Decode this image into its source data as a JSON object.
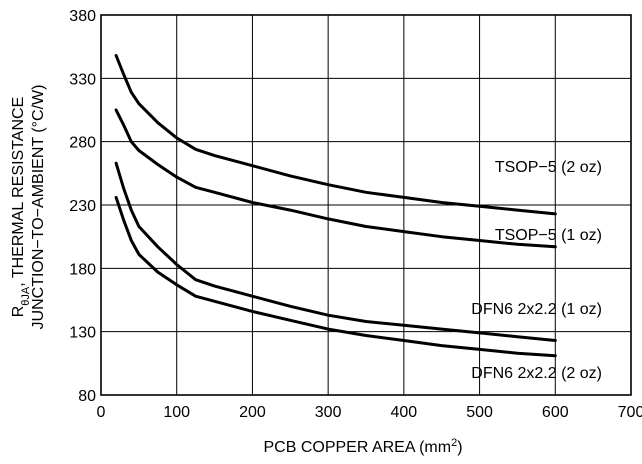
{
  "chart_data": {
    "type": "line",
    "title": "",
    "xlabel_main": "PCB COPPER AREA (mm",
    "xlabel_sup": "2",
    "xlabel_end": ")",
    "ylabel_line1_prefix": "R",
    "ylabel_line1_sub": "θJA",
    "ylabel_line1_rest": ", THERMAL RESISTANCE",
    "ylabel_line2": "JUNCTION−TO−AMBIENT (°C/W)",
    "xlim": [
      0,
      700
    ],
    "ylim": [
      80,
      380
    ],
    "xticks": [
      0,
      100,
      200,
      300,
      400,
      500,
      600,
      700
    ],
    "yticks": [
      80,
      130,
      180,
      230,
      280,
      330,
      380
    ],
    "grid": true,
    "legend": "none",
    "series": [
      {
        "name": "TSOP−5 (1 oz)",
        "x": [
          20,
          30,
          40,
          50,
          75,
          100,
          125,
          150,
          200,
          250,
          300,
          350,
          400,
          450,
          500,
          550,
          600
        ],
        "y": [
          348,
          333,
          319,
          310,
          295,
          283,
          274,
          269,
          261,
          253,
          246,
          240,
          236,
          232,
          229,
          226,
          223
        ]
      },
      {
        "name": "TSOP−5 (2 oz)",
        "x": [
          20,
          30,
          40,
          50,
          75,
          100,
          125,
          150,
          200,
          250,
          300,
          350,
          400,
          450,
          500,
          550,
          600
        ],
        "y": [
          305,
          293,
          280,
          273,
          262,
          252,
          244,
          240,
          232,
          226,
          219,
          213,
          209,
          205,
          202,
          199,
          197
        ]
      },
      {
        "name": "DFN6 2x2.2 (1 oz)",
        "x": [
          20,
          30,
          40,
          50,
          75,
          100,
          125,
          150,
          200,
          250,
          300,
          350,
          400,
          450,
          500,
          550,
          600
        ],
        "y": [
          263,
          243,
          226,
          213,
          197,
          183,
          171,
          166,
          158,
          150,
          143,
          138,
          135,
          132,
          129,
          126,
          123
        ]
      },
      {
        "name": "DFN6 2x2.2 (2 oz)",
        "x": [
          20,
          30,
          40,
          50,
          75,
          100,
          125,
          150,
          200,
          250,
          300,
          350,
          400,
          450,
          500,
          550,
          600
        ],
        "y": [
          236,
          218,
          202,
          191,
          177,
          167,
          158,
          154,
          146,
          139,
          132,
          127,
          123,
          119,
          116,
          113,
          111
        ]
      }
    ]
  }
}
